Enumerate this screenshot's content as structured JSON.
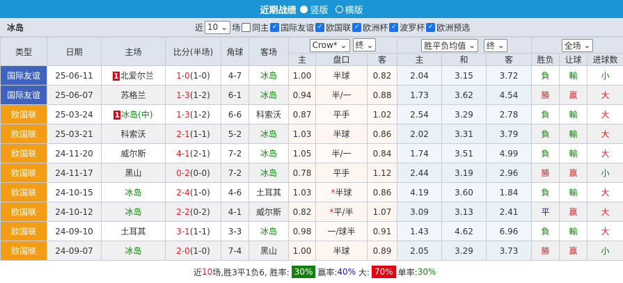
{
  "title": "近期战绩",
  "layout_options": [
    "竖版",
    "横版"
  ],
  "team": "冰岛",
  "filter": {
    "near": "近",
    "count": "10",
    "unit": "场",
    "same_home": "同主",
    "competitions": [
      "国际友谊",
      "欧国联",
      "欧洲杯",
      "波罗杯",
      "欧洲预选"
    ]
  },
  "headers": {
    "type": "类型",
    "date": "日期",
    "home": "主场",
    "score": "比分(半场)",
    "corner": "角球",
    "away": "客场",
    "company": "Crow*",
    "company_stage": "终",
    "ah_home": "主",
    "ah_line": "盘口",
    "ah_away": "客",
    "odds_type": "胜平负均值",
    "odds_stage": "终",
    "eu_home": "主",
    "eu_draw": "和",
    "eu_away": "客",
    "period": "全场",
    "result": "胜负",
    "handicap": "让球",
    "goals": "进球数"
  },
  "rows": [
    {
      "type": "国际友谊",
      "date": "25-06-11",
      "rank": "1",
      "home": "北爱尔兰",
      "ft": "1-0",
      "ht": "(1-0)",
      "corner": "4-7",
      "away": "冰岛",
      "ah_h": "1.00",
      "line": "半球",
      "star": "",
      "ah_a": "0.82",
      "eh": "2.04",
      "ed": "3.15",
      "ea": "3.72",
      "res": "負",
      "hc": "輸",
      "gl": "小"
    },
    {
      "type": "国际友谊",
      "date": "25-06-07",
      "rank": "",
      "home": "苏格兰",
      "ft": "1-3",
      "ht": "(1-2)",
      "corner": "6-1",
      "away": "冰岛",
      "ah_h": "0.94",
      "line": "半/一",
      "star": "",
      "ah_a": "0.88",
      "eh": "1.73",
      "ed": "3.62",
      "ea": "4.54",
      "res": "勝",
      "hc": "赢",
      "gl": "大"
    },
    {
      "type": "欧国联",
      "date": "25-03-24",
      "rank": "1",
      "home": "冰岛(中)",
      "ft": "1-3",
      "ht": "(1-2)",
      "corner": "6-6",
      "away": "科索沃",
      "ah_h": "0.87",
      "line": "平手",
      "star": "",
      "ah_a": "1.02",
      "eh": "2.54",
      "ed": "3.29",
      "ea": "2.78",
      "res": "負",
      "hc": "輸",
      "gl": "大"
    },
    {
      "type": "欧国联",
      "date": "25-03-21",
      "rank": "",
      "home": "科索沃",
      "ft": "2-1",
      "ht": "(1-1)",
      "corner": "5-2",
      "away": "冰岛",
      "ah_h": "1.03",
      "line": "半球",
      "star": "",
      "ah_a": "0.86",
      "eh": "2.02",
      "ed": "3.31",
      "ea": "3.79",
      "res": "負",
      "hc": "輸",
      "gl": "大"
    },
    {
      "type": "欧国联",
      "date": "24-11-20",
      "rank": "",
      "home": "威尔斯",
      "ft": "4-1",
      "ht": "(2-1)",
      "corner": "7-2",
      "away": "冰岛",
      "ah_h": "1.05",
      "line": "半/一",
      "star": "",
      "ah_a": "0.84",
      "eh": "1.74",
      "ed": "3.51",
      "ea": "4.99",
      "res": "負",
      "hc": "輸",
      "gl": "大"
    },
    {
      "type": "欧国联",
      "date": "24-11-17",
      "rank": "",
      "home": "黑山",
      "ft": "0-2",
      "ht": "(0-0)",
      "corner": "7-2",
      "away": "冰岛",
      "ah_h": "0.78",
      "line": "平手",
      "star": "",
      "ah_a": "1.12",
      "eh": "2.44",
      "ed": "3.19",
      "ea": "2.96",
      "res": "勝",
      "hc": "赢",
      "gl": "小"
    },
    {
      "type": "欧国联",
      "date": "24-10-15",
      "rank": "",
      "home": "冰岛",
      "ft": "2-4",
      "ht": "(1-0)",
      "corner": "4-6",
      "away": "土耳其",
      "ah_h": "1.03",
      "line": "半球",
      "star": "*",
      "ah_a": "0.86",
      "eh": "4.19",
      "ed": "3.60",
      "ea": "1.84",
      "res": "負",
      "hc": "輸",
      "gl": "大"
    },
    {
      "type": "欧国联",
      "date": "24-10-12",
      "rank": "",
      "home": "冰岛",
      "ft": "2-2",
      "ht": "(0-2)",
      "corner": "4-1",
      "away": "威尔斯",
      "ah_h": "0.82",
      "line": "平/半",
      "star": "*",
      "ah_a": "1.07",
      "eh": "3.09",
      "ed": "3.13",
      "ea": "2.41",
      "res": "平",
      "hc": "赢",
      "gl": "大"
    },
    {
      "type": "欧国联",
      "date": "24-09-10",
      "rank": "",
      "home": "土耳其",
      "ft": "3-1",
      "ht": "(1-1)",
      "corner": "3-3",
      "away": "冰岛",
      "ah_h": "0.98",
      "line": "一/球半",
      "star": "",
      "ah_a": "0.91",
      "eh": "1.43",
      "ed": "4.62",
      "ea": "6.96",
      "res": "負",
      "hc": "輸",
      "gl": "大"
    },
    {
      "type": "欧国联",
      "date": "24-09-07",
      "rank": "",
      "home": "冰岛",
      "ft": "2-0",
      "ht": "(1-0)",
      "corner": "7-4",
      "away": "黑山",
      "ah_h": "1.00",
      "line": "半球",
      "star": "",
      "ah_a": "0.89",
      "eh": "2.05",
      "ed": "3.29",
      "ea": "3.73",
      "res": "勝",
      "hc": "赢",
      "gl": "小"
    }
  ],
  "summary": {
    "p1": "近",
    "n": "10",
    "p2": "场,胜3平1负6, 胜率:",
    "win_rate": "30%",
    "p3": "赢率:",
    "cover_rate": "40%",
    "p4": "大:",
    "over_rate": "70%",
    "p5": "单率:",
    "odd_rate": "30%"
  },
  "colors": {
    "title_bar": "#1b95d6",
    "friendly": "#3f63bd",
    "nations_league": "#f39c16",
    "win_badge": "#13830f",
    "over_badge": "#e60012"
  }
}
